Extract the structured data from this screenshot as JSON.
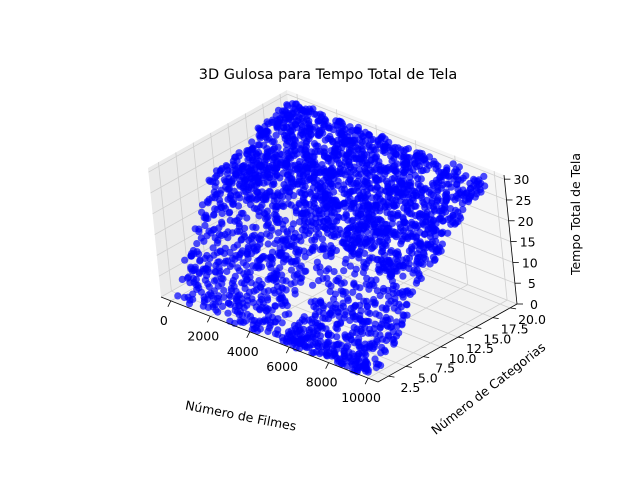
{
  "chart_data": {
    "type": "scatter3d",
    "title": "3D Gulosa para Tempo Total de Tela",
    "xlabel": "Número de Filmes",
    "ylabel": "Número de Categorias",
    "zlabel": "Tempo Total de Tela",
    "xlim": [
      -500,
      10500
    ],
    "ylim": [
      1,
      21
    ],
    "zlim": [
      0,
      31
    ],
    "xticks": [
      0,
      2000,
      4000,
      6000,
      8000,
      10000
    ],
    "xtick_labels": [
      "0",
      "2000",
      "4000",
      "6000",
      "8000",
      "10000"
    ],
    "yticks": [
      2.5,
      5.0,
      7.5,
      10.0,
      12.5,
      15.0,
      17.5,
      20.0
    ],
    "ytick_labels": [
      "2.5",
      "5.0",
      "7.5",
      "10.0",
      "12.5",
      "15.0",
      "17.5",
      "20.0"
    ],
    "zticks": [
      0,
      5,
      10,
      15,
      20,
      25,
      30
    ],
    "ztick_labels": [
      "0",
      "5",
      "10",
      "15",
      "20",
      "25",
      "30"
    ],
    "grid": true,
    "marker_color": "#0000ff",
    "x_range": [
      100,
      10000
    ],
    "y_range": [
      1,
      20
    ],
    "surface": {
      "description_points": [
        {
          "x": 100,
          "y": 1,
          "z": 1
        },
        {
          "x": 10000,
          "y": 1,
          "z": 1
        },
        {
          "x": 100,
          "y": 20,
          "z": 30
        },
        {
          "x": 10000,
          "y": 20,
          "z": 30
        },
        {
          "x": 100,
          "y": 8,
          "z": 24
        },
        {
          "x": 10000,
          "y": 8,
          "z": 13
        }
      ]
    }
  }
}
